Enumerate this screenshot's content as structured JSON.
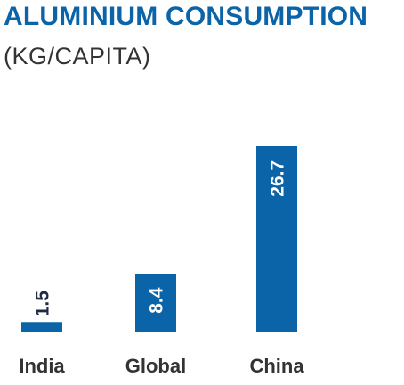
{
  "header": {
    "title": "ALUMINIUM CONSUMPTION",
    "subtitle": "(KG/CAPITA)"
  },
  "colors": {
    "bar": "#0b63a8",
    "title": "#0b63a8",
    "subtitle": "#333333",
    "label_on_bar": "#ffffff",
    "label_outside": "#1f2a44",
    "category_label": "#333333",
    "rule": "#9a9a9a"
  },
  "chart_data": {
    "type": "bar",
    "title": "ALUMINIUM CONSUMPTION",
    "subtitle": "(KG/CAPITA)",
    "categories": [
      "India",
      "Global",
      "China"
    ],
    "values": [
      1.5,
      8.4,
      26.7
    ],
    "value_labels": [
      "1.5",
      "8.4",
      "26.7"
    ],
    "xlabel": "",
    "ylabel": "",
    "ylim": [
      0,
      26.7
    ],
    "grid": false,
    "legend": "none",
    "data_label_orientation": "vertical"
  }
}
